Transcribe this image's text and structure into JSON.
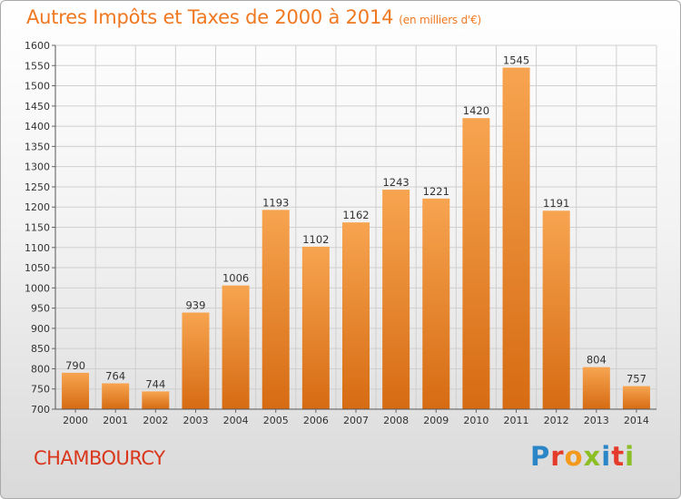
{
  "title": "Autres Impôts et Taxes de 2000 à 2014",
  "subtitle": "(en milliers d'€)",
  "city": "CHAMBOURCY",
  "logo": {
    "text": "Proxiti",
    "letters": [
      {
        "ch": "P",
        "color": "#2b86c7"
      },
      {
        "ch": "r",
        "color": "#e53b2b"
      },
      {
        "ch": "o",
        "color": "#f39a1c"
      },
      {
        "ch": "x",
        "color": "#8cbf26"
      },
      {
        "ch": "i",
        "color": "#2b86c7"
      },
      {
        "ch": "t",
        "color": "#e53b2b"
      },
      {
        "ch": "i",
        "color": "#8cbf26"
      }
    ]
  },
  "chart_data": {
    "type": "bar",
    "categories": [
      "2000",
      "2001",
      "2002",
      "2003",
      "2004",
      "2005",
      "2006",
      "2007",
      "2008",
      "2009",
      "2010",
      "2011",
      "2012",
      "2013",
      "2014"
    ],
    "values": [
      790,
      764,
      744,
      939,
      1006,
      1193,
      1102,
      1162,
      1243,
      1221,
      1420,
      1545,
      1191,
      804,
      757
    ],
    "ylim": [
      700,
      1600
    ],
    "ytick_step": 50,
    "grid": true,
    "bar_color_top": "#f7a450",
    "bar_color_bottom": "#d66b12",
    "grid_color": "#cfcfcf"
  }
}
